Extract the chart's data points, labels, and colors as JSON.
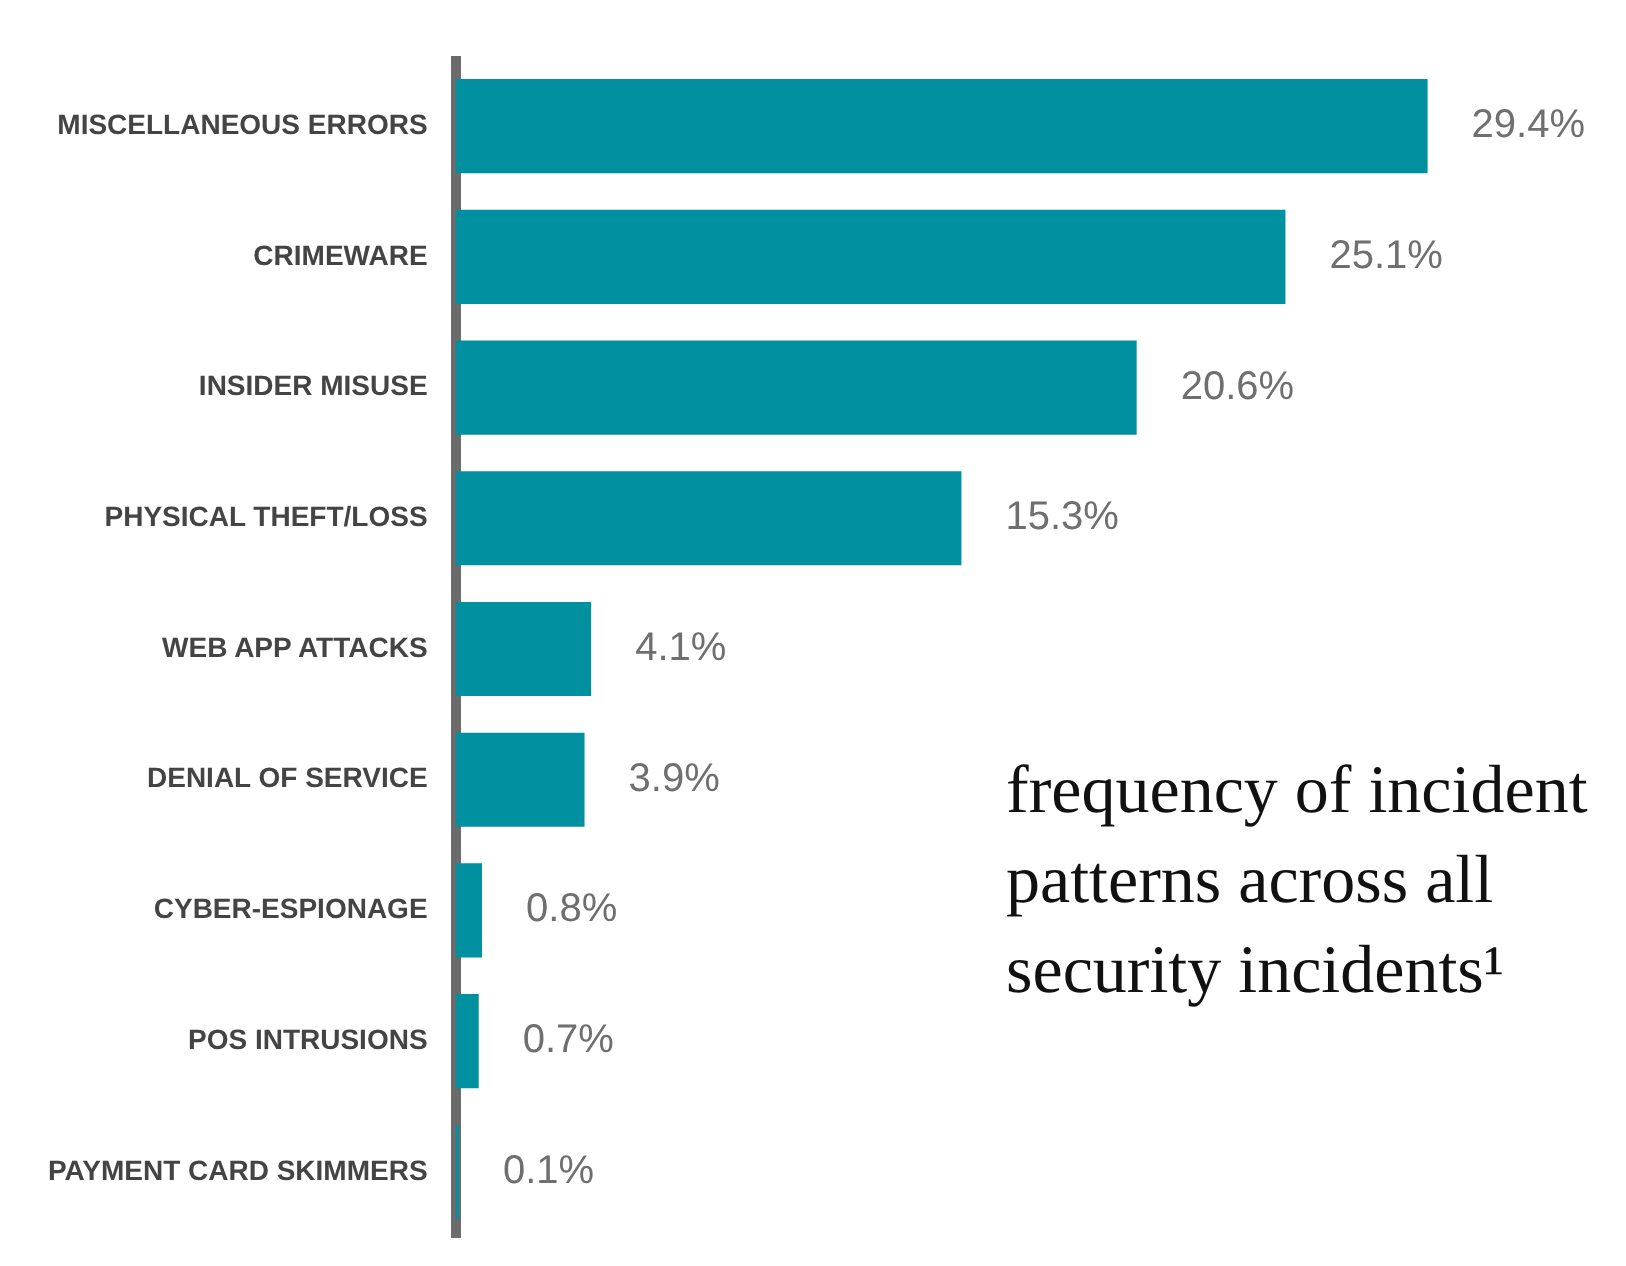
{
  "chart_data": {
    "type": "bar",
    "orientation": "horizontal",
    "title": "frequency of incident patterns across all security incidents¹",
    "categories": [
      "MISCELLANEOUS ERRORS",
      "CRIMEWARE",
      "INSIDER MISUSE",
      "PHYSICAL THEFT/LOSS",
      "WEB APP ATTACKS",
      "DENIAL OF SERVICE",
      "CYBER-ESPIONAGE",
      "POS INTRUSIONS",
      "PAYMENT CARD SKIMMERS"
    ],
    "values": [
      29.4,
      25.1,
      20.6,
      15.3,
      4.1,
      3.9,
      0.8,
      0.7,
      0.1
    ],
    "value_labels": [
      "29.4%",
      "25.1%",
      "20.6%",
      "15.3%",
      "4.1%",
      "3.9%",
      "0.8%",
      "0.7%",
      "0.1%"
    ],
    "color": "#00909f"
  }
}
